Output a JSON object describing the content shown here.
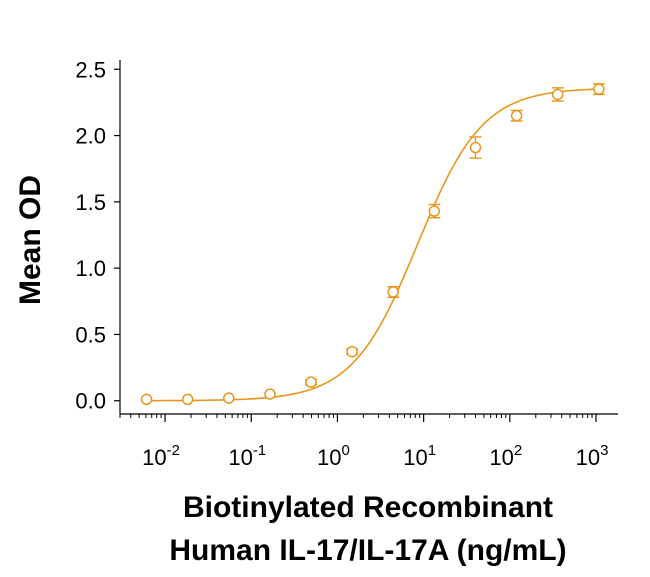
{
  "chart_data": {
    "type": "scatter",
    "xlabel_line1": "Biotinylated Recombinant",
    "xlabel_line2": "Human IL-17/IL-17A (ng/mL)",
    "ylabel": "Mean OD",
    "x_scale": "log",
    "xlim": [
      0.003,
      1800
    ],
    "ylim": [
      -0.1,
      2.57
    ],
    "grid": false,
    "color": "#e8961e",
    "y_ticks": [
      {
        "value": 0.0,
        "label": "0.0"
      },
      {
        "value": 0.5,
        "label": "0.5"
      },
      {
        "value": 1.0,
        "label": "1.0"
      },
      {
        "value": 1.5,
        "label": "1.5"
      },
      {
        "value": 2.0,
        "label": "2.0"
      },
      {
        "value": 2.5,
        "label": "2.5"
      }
    ],
    "x_ticks": [
      {
        "value": 0.01,
        "base": "10",
        "exp": "-2"
      },
      {
        "value": 0.1,
        "base": "10",
        "exp": "-1"
      },
      {
        "value": 1,
        "base": "10",
        "exp": "0"
      },
      {
        "value": 10,
        "base": "10",
        "exp": "1"
      },
      {
        "value": 100,
        "base": "10",
        "exp": "2"
      },
      {
        "value": 1000,
        "base": "10",
        "exp": "3"
      }
    ],
    "series": [
      {
        "points": [
          {
            "x": 0.0061,
            "y": 0.01,
            "err": 0.0
          },
          {
            "x": 0.0183,
            "y": 0.01,
            "err": 0.0
          },
          {
            "x": 0.0549,
            "y": 0.02,
            "err": 0.0
          },
          {
            "x": 0.165,
            "y": 0.05,
            "err": 0.0
          },
          {
            "x": 0.494,
            "y": 0.14,
            "err": 0.02
          },
          {
            "x": 1.48,
            "y": 0.37,
            "err": 0.02
          },
          {
            "x": 4.44,
            "y": 0.82,
            "err": 0.04
          },
          {
            "x": 13.3,
            "y": 1.43,
            "err": 0.05
          },
          {
            "x": 40.0,
            "y": 1.91,
            "err": 0.08
          },
          {
            "x": 120,
            "y": 2.15,
            "err": 0.04
          },
          {
            "x": 360,
            "y": 2.31,
            "err": 0.05
          },
          {
            "x": 1080,
            "y": 2.35,
            "err": 0.04
          }
        ]
      }
    ]
  }
}
